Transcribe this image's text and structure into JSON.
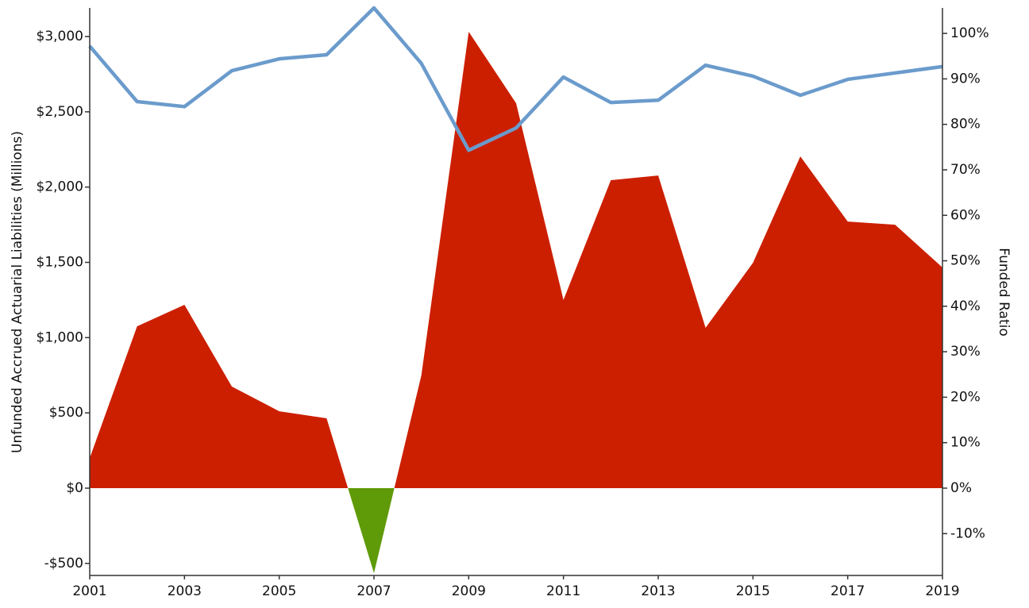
{
  "chart_data": {
    "type": "area",
    "y_label": "Unfunded Accrued Actuarial Liabilities (Millions)",
    "y2_label": "Funded Ratio",
    "x": [
      2001,
      2002,
      2003,
      2004,
      2005,
      2006,
      2007,
      2008,
      2009,
      2010,
      2011,
      2012,
      2013,
      2014,
      2015,
      2016,
      2017,
      2018,
      2019
    ],
    "xlim": [
      2001,
      2019
    ],
    "xticks": [
      2001,
      2003,
      2005,
      2007,
      2009,
      2011,
      2013,
      2015,
      2017,
      2019
    ],
    "ylim": [
      -580,
      3190
    ],
    "yticks": [
      {
        "value": -500,
        "label": "-$500"
      },
      {
        "value": 0,
        "label": "$0"
      },
      {
        "value": 500,
        "label": "$500"
      },
      {
        "value": 1000,
        "label": "$1,000"
      },
      {
        "value": 1500,
        "label": "$1,500"
      },
      {
        "value": 2000,
        "label": "$2,000"
      },
      {
        "value": 2500,
        "label": "$2,500"
      },
      {
        "value": 3000,
        "label": "$3,000"
      }
    ],
    "y2lim": [
      -19.2,
      105.6
    ],
    "y2ticks": [
      {
        "value": -10,
        "label": "-10%"
      },
      {
        "value": 0,
        "label": "0%"
      },
      {
        "value": 10,
        "label": "10%"
      },
      {
        "value": 20,
        "label": "20%"
      },
      {
        "value": 30,
        "label": "30%"
      },
      {
        "value": 40,
        "label": "40%"
      },
      {
        "value": 50,
        "label": "50%"
      },
      {
        "value": 60,
        "label": "60%"
      },
      {
        "value": 70,
        "label": "70%"
      },
      {
        "value": 80,
        "label": "80%"
      },
      {
        "value": 90,
        "label": "90%"
      },
      {
        "value": 100,
        "label": "100%"
      }
    ],
    "series": [
      {
        "type": "area",
        "color": "#cc1f00",
        "negative_color": "#5f9a08",
        "values": [
          200,
          1075,
          1218,
          675,
          511,
          464,
          -565,
          749,
          3032,
          2557,
          1250,
          2046,
          2077,
          1065,
          1497,
          2204,
          1771,
          1750,
          1466
        ]
      },
      {
        "type": "line",
        "axis": "y2",
        "color": "#6b9bcc",
        "values": [
          97.2,
          85.0,
          83.9,
          91.8,
          94.4,
          95.3,
          105.6,
          93.4,
          74.3,
          79.2,
          90.4,
          84.8,
          85.3,
          93.0,
          90.6,
          86.4,
          89.9,
          91.3,
          92.7
        ]
      }
    ]
  }
}
